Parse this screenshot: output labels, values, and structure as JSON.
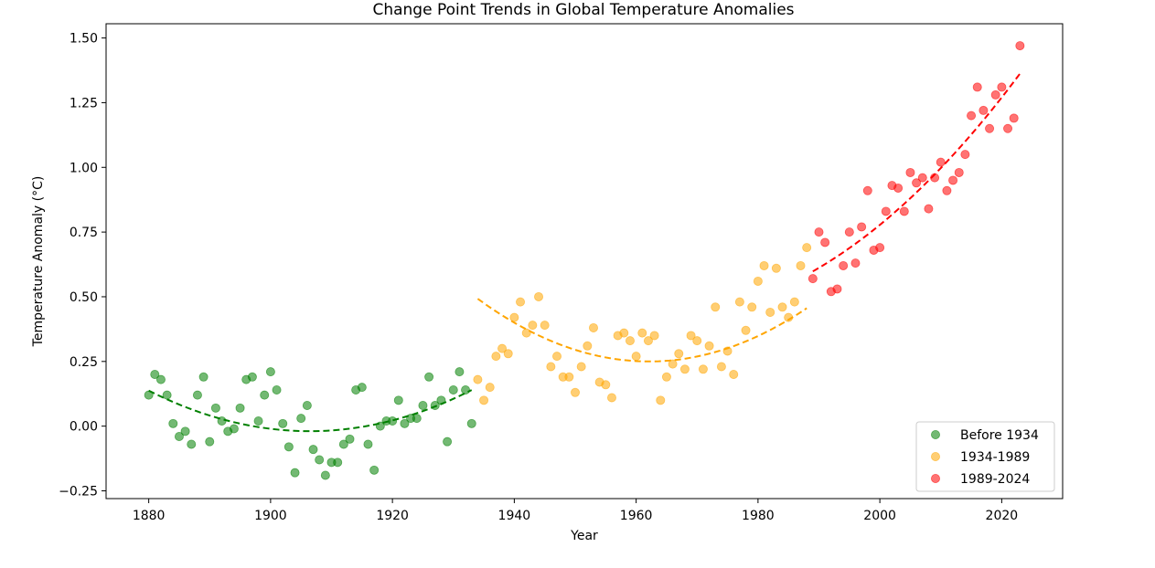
{
  "chart_data": {
    "type": "scatter",
    "title": "Change Point Trends in Global Temperature Anomalies",
    "xlabel": "Year",
    "ylabel": "Temperature Anomaly (°C)",
    "xlim": [
      1873,
      2030
    ],
    "ylim": [
      -0.28,
      1.555
    ],
    "xticks": [
      1880,
      1900,
      1920,
      1940,
      1960,
      1980,
      2000,
      2020
    ],
    "xtick_labels": [
      "1880",
      "1900",
      "1920",
      "1940",
      "1960",
      "1980",
      "2000",
      "2020"
    ],
    "yticks": [
      -0.25,
      0.0,
      0.25,
      0.5,
      0.75,
      1.0,
      1.25,
      1.5
    ],
    "ytick_labels": [
      "−0.25",
      "0.00",
      "0.25",
      "0.50",
      "0.75",
      "1.00",
      "1.25",
      "1.50"
    ],
    "grid": false,
    "legend_position": "lower-right",
    "series": [
      {
        "name": "Before 1934",
        "color": "#008000",
        "x": [
          1880,
          1881,
          1882,
          1883,
          1884,
          1885,
          1886,
          1887,
          1888,
          1889,
          1890,
          1891,
          1892,
          1893,
          1894,
          1895,
          1896,
          1897,
          1898,
          1899,
          1900,
          1901,
          1902,
          1903,
          1904,
          1905,
          1906,
          1907,
          1908,
          1909,
          1910,
          1911,
          1912,
          1913,
          1914,
          1915,
          1916,
          1917,
          1918,
          1919,
          1920,
          1921,
          1922,
          1923,
          1924,
          1925,
          1926,
          1927,
          1928,
          1929,
          1930,
          1931,
          1932,
          1933
        ],
        "y": [
          0.12,
          0.2,
          0.18,
          0.12,
          0.01,
          -0.04,
          -0.02,
          -0.07,
          0.12,
          0.19,
          -0.06,
          0.07,
          0.02,
          -0.02,
          -0.01,
          0.07,
          0.18,
          0.19,
          0.02,
          0.12,
          0.21,
          0.14,
          0.01,
          -0.08,
          -0.18,
          0.03,
          0.08,
          -0.09,
          -0.13,
          -0.19,
          -0.14,
          -0.14,
          -0.07,
          -0.05,
          0.14,
          0.15,
          -0.07,
          -0.17,
          0.0,
          0.02,
          0.02,
          0.1,
          0.01,
          0.03,
          0.03,
          0.08,
          0.19,
          0.08,
          0.1,
          -0.06,
          0.14,
          0.21,
          0.14,
          0.01
        ],
        "trend_x": [
          1880,
          1933
        ],
        "trend_coef": [
          0.0002248,
          -0.011871,
          0.13726
        ]
      },
      {
        "name": "1934-1989",
        "color": "#FFA500",
        "x": [
          1934,
          1935,
          1936,
          1937,
          1938,
          1939,
          1940,
          1941,
          1942,
          1943,
          1944,
          1945,
          1946,
          1947,
          1948,
          1949,
          1950,
          1951,
          1952,
          1953,
          1954,
          1955,
          1956,
          1957,
          1958,
          1959,
          1960,
          1961,
          1962,
          1963,
          1964,
          1965,
          1966,
          1967,
          1968,
          1969,
          1970,
          1971,
          1972,
          1973,
          1974,
          1975,
          1976,
          1977,
          1978,
          1979,
          1980,
          1981,
          1982,
          1983,
          1984,
          1985,
          1986,
          1987,
          1988
        ],
        "y": [
          0.18,
          0.1,
          0.15,
          0.27,
          0.3,
          0.28,
          0.42,
          0.48,
          0.36,
          0.39,
          0.5,
          0.39,
          0.23,
          0.27,
          0.19,
          0.19,
          0.13,
          0.23,
          0.31,
          0.38,
          0.17,
          0.16,
          0.11,
          0.35,
          0.36,
          0.33,
          0.27,
          0.36,
          0.33,
          0.35,
          0.1,
          0.19,
          0.24,
          0.28,
          0.22,
          0.35,
          0.33,
          0.22,
          0.31,
          0.46,
          0.23,
          0.29,
          0.2,
          0.48,
          0.37,
          0.46,
          0.56,
          0.62,
          0.44,
          0.61,
          0.46,
          0.42,
          0.48,
          0.62,
          0.69
        ],
        "trend_x": [
          1934,
          1988
        ],
        "trend_coef": [
          0.0003068,
          -0.017245,
          0.49233
        ]
      },
      {
        "name": "1989-2024",
        "color": "#FF0000",
        "x": [
          1989,
          1990,
          1991,
          1992,
          1993,
          1994,
          1995,
          1996,
          1997,
          1998,
          1999,
          2000,
          2001,
          2002,
          2003,
          2004,
          2005,
          2006,
          2007,
          2008,
          2009,
          2010,
          2011,
          2012,
          2013,
          2014,
          2015,
          2016,
          2017,
          2018,
          2019,
          2020,
          2021,
          2022,
          2023
        ],
        "y": [
          0.57,
          0.75,
          0.71,
          0.52,
          0.53,
          0.62,
          0.75,
          0.63,
          0.77,
          0.91,
          0.68,
          0.69,
          0.83,
          0.93,
          0.92,
          0.83,
          0.98,
          0.94,
          0.96,
          0.84,
          0.96,
          1.02,
          0.91,
          0.95,
          0.98,
          1.05,
          1.2,
          1.31,
          1.22,
          1.15,
          1.28,
          1.31,
          1.15,
          1.19,
          1.47
        ],
        "trend_x": [
          1989,
          2023
        ],
        "trend_coef": [
          0.0002669,
          0.013403,
          0.59802
        ]
      }
    ]
  }
}
